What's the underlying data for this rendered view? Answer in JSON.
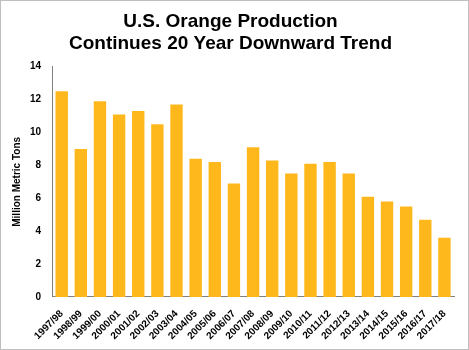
{
  "chart_data": {
    "type": "bar",
    "title": [
      "U.S. Orange Production",
      "Continues 20 Year Downward Trend"
    ],
    "y_label": "Million Metric Tons",
    "categories": [
      "1997/98",
      "1998/99",
      "1999/00",
      "2000/01",
      "2001/02",
      "2002/03",
      "2003/04",
      "2004/05",
      "2005/06",
      "2006/07",
      "2007/08",
      "2008/09",
      "2009/10",
      "2010/11",
      "2011/12",
      "2012/13",
      "2013/14",
      "2014/15",
      "2015/16",
      "2016/17",
      "2017/18"
    ],
    "values": [
      12.5,
      9.0,
      11.9,
      11.1,
      11.3,
      10.5,
      11.7,
      8.4,
      8.2,
      6.9,
      9.1,
      8.3,
      7.5,
      8.1,
      8.2,
      7.5,
      6.1,
      5.8,
      5.5,
      4.7,
      3.6
    ],
    "color": "#ffb81c",
    "ylim": [
      0,
      14
    ],
    "yticks": [
      0,
      2,
      4,
      6,
      8,
      10,
      12,
      14
    ],
    "grid": false
  }
}
